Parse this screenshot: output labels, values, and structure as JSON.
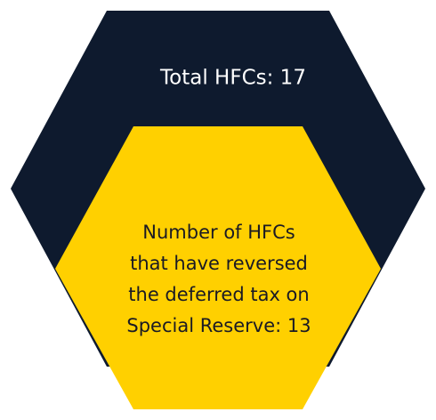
{
  "outer": {
    "label": "Total HFCs: 17"
  },
  "inner": {
    "lines": [
      "Number of HFCs",
      "that have reversed",
      "the deferred tax on",
      "Special Reserve: 13"
    ]
  }
}
